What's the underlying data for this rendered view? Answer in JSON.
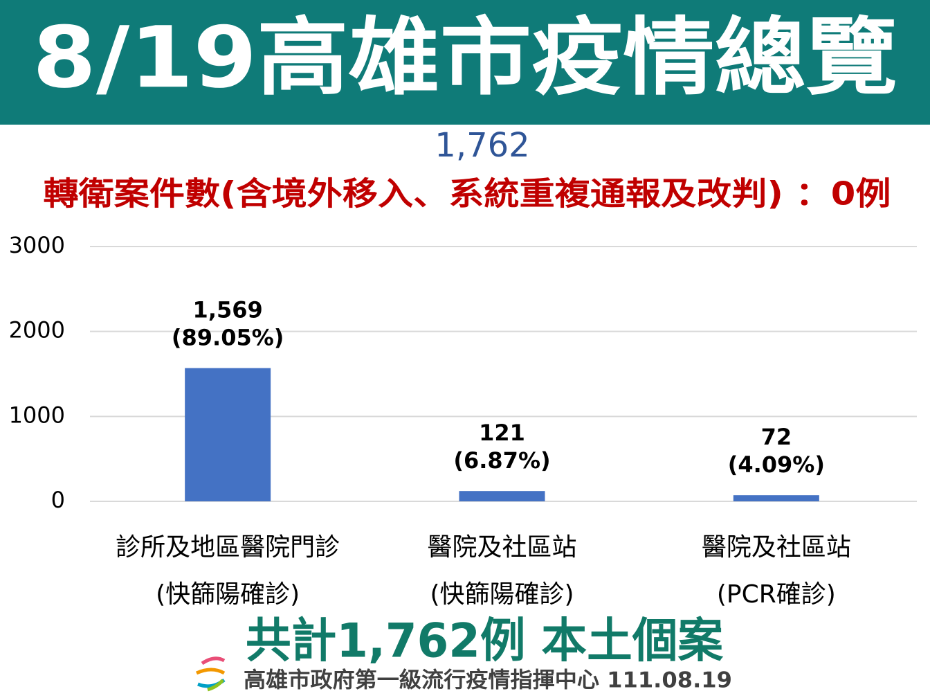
{
  "chart_data": {
    "type": "bar",
    "title": "8/19高雄市疫情總覽",
    "total_label": "1,762",
    "note": "轉衛案件數(含境外移入、系統重複通報及改判) ：0例",
    "categories": [
      "診所及地區醫院門診",
      "醫院及社區站",
      "醫院及社區站"
    ],
    "category_sublabels": [
      "(快篩陽確診)",
      "(快篩陽確診)",
      "(PCR確診)"
    ],
    "values": [
      1569,
      121,
      72
    ],
    "value_labels": [
      "1,569",
      "121",
      "72"
    ],
    "percent_labels": [
      "(89.05%)",
      "(6.87%)",
      "(4.09%)"
    ],
    "color": "#4472c4",
    "ylim": [
      0,
      3000
    ],
    "yticks": [
      0,
      1000,
      2000,
      3000
    ],
    "grid": true,
    "summary": "共計1,762例 本土個案",
    "footer": "高雄市政府第一級流行疫情指揮中心 111.08.19"
  }
}
